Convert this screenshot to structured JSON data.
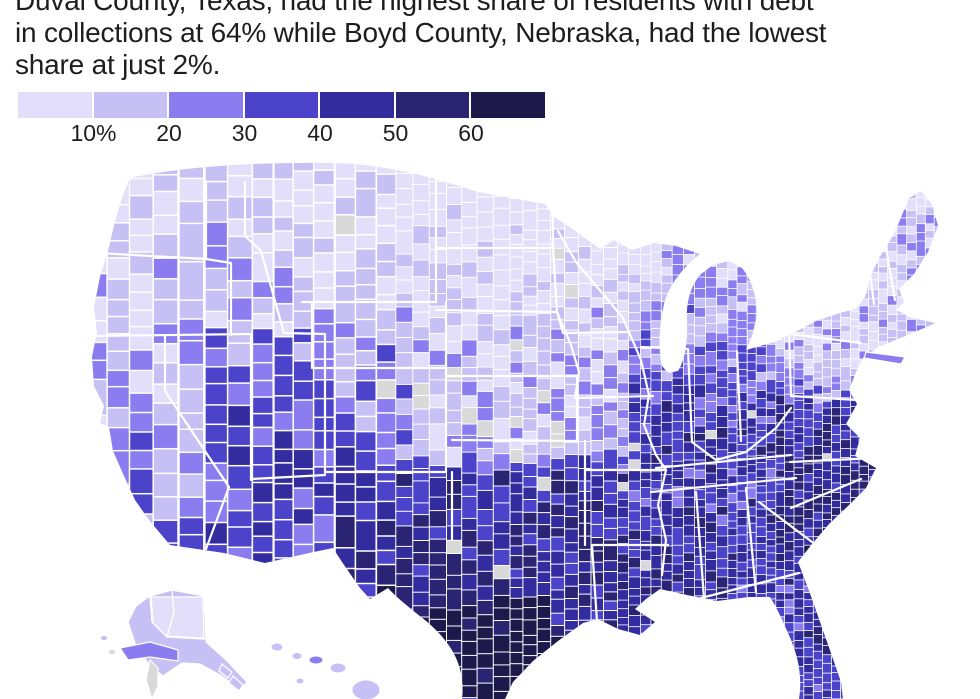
{
  "title": {
    "lines": [
      "Duval County, Texas, had the highest share of residents with debt",
      "in collections at 64% while Boyd County, Nebraska, had the lowest",
      "share at just 2%."
    ],
    "full_text": "Duval County, Texas, had the highest share of residents with debt in collections at 64% while Boyd County, Nebraska, had the lowest share at just 2%."
  },
  "legend": {
    "tick_labels": [
      "10%",
      "20",
      "30",
      "40",
      "50",
      "60"
    ],
    "bin_colors": [
      "#e3def9",
      "#c6c0f4",
      "#8b7df0",
      "#4b44cb",
      "#332c9f",
      "#2b2473",
      "#1d1a4b"
    ],
    "no_data_color": "#d9d9d9"
  },
  "chart_data": {
    "type": "heatmap",
    "subtype": "choropleth-county-map",
    "title": "Duval County, Texas, had the highest share of residents with debt in collections at 64% while Boyd County, Nebraska, had the lowest share at just 2%.",
    "metric": "Share of residents with debt in collections (%)",
    "geography": "United States counties",
    "insets": [
      "Alaska",
      "Hawaii"
    ],
    "legend_position": "top-left",
    "bins": [
      {
        "label": "under 10%",
        "color": "#e3def9"
      },
      {
        "label": "10-20%",
        "color": "#c6c0f4"
      },
      {
        "label": "20-30%",
        "color": "#8b7df0"
      },
      {
        "label": "30-40%",
        "color": "#4b44cb"
      },
      {
        "label": "40-50%",
        "color": "#332c9f"
      },
      {
        "label": "50-60%",
        "color": "#2b2473"
      },
      {
        "label": "60%+",
        "color": "#1d1a4b"
      }
    ],
    "no_data": {
      "label": "No data",
      "color": "#d9d9d9"
    },
    "highlights": [
      {
        "county": "Duval County, Texas",
        "value_pct": 64,
        "rank": "highest"
      },
      {
        "county": "Boyd County, Nebraska",
        "value_pct": 2,
        "rank": "lowest"
      }
    ],
    "regional_pattern": [
      {
        "region": "Upper Midwest and Northern Plains (MN, WI, IA, Dakotas, NE)",
        "approx_share": "under 20%, many no-data counties in the Plains"
      },
      {
        "region": "Pacific Northwest and Mountain West",
        "approx_share": "10-30%"
      },
      {
        "region": "California coast",
        "approx_share": "10-30%"
      },
      {
        "region": "Nevada and interior Southwest",
        "approx_share": "20-40%"
      },
      {
        "region": "Texas, Oklahoma, Deep South (LA, MS, AL, GA)",
        "approx_share": "40-60%"
      },
      {
        "region": "South Texas border counties",
        "approx_share": "50-65%, darkest on map"
      },
      {
        "region": "Southeast coast (SC, NC, eastern VA)",
        "approx_share": "40-60%"
      },
      {
        "region": "Ohio Valley (KY, WV, southern OH/IN)",
        "approx_share": "30-50%"
      },
      {
        "region": "Northeast (NY, New England)",
        "approx_share": "10-30%, darker pocket in northern Maine"
      },
      {
        "region": "Florida",
        "approx_share": "20-40%"
      },
      {
        "region": "Alaska inset",
        "approx_share": "mostly under 20%"
      },
      {
        "region": "Hawaii inset",
        "approx_share": "10-20%"
      }
    ]
  }
}
